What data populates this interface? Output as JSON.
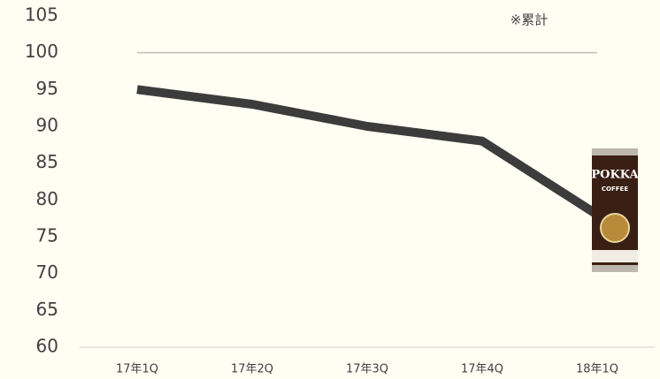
{
  "chart_data": {
    "type": "line",
    "annotation": "※累計",
    "categories": [
      "17年1Q",
      "17年2Q",
      "17年3Q",
      "17年4Q",
      "18年1Q"
    ],
    "series": [
      {
        "name": null,
        "color": "#3c3c3c",
        "values": [
          95,
          93,
          90,
          88,
          78
        ]
      }
    ],
    "ylim": [
      60,
      105
    ],
    "yticks": [
      60,
      65,
      70,
      75,
      80,
      85,
      90,
      95,
      100,
      105
    ],
    "reference_line": 100,
    "product_label": "POKKA",
    "product_sub": "COFFEE"
  }
}
